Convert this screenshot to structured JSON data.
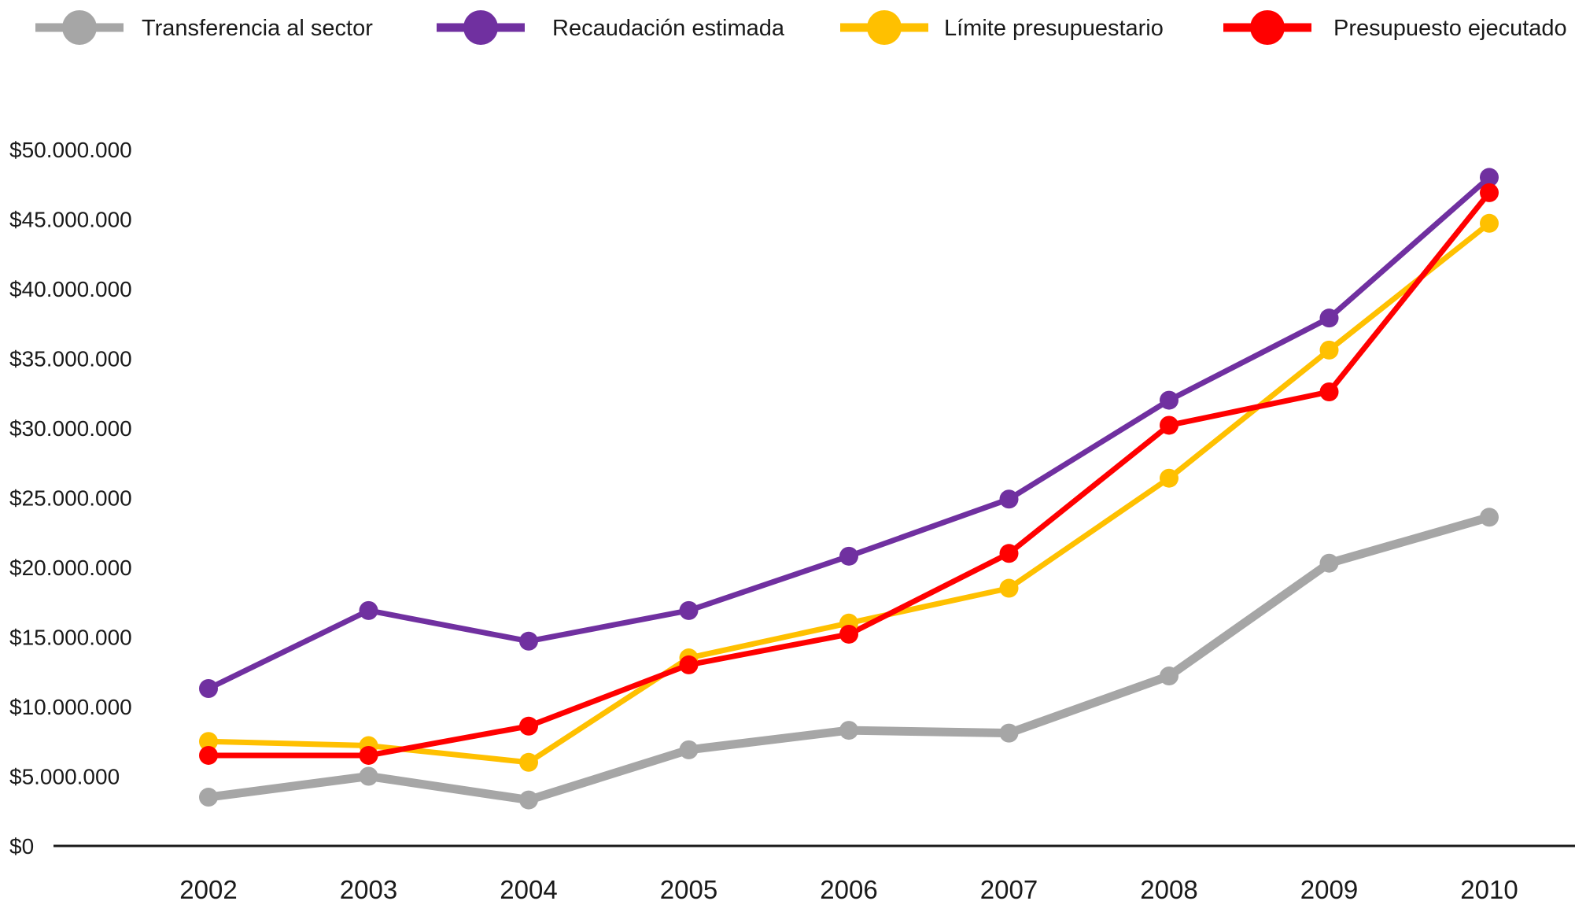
{
  "chart_data": {
    "type": "line",
    "title": "",
    "xlabel": "",
    "ylabel": "",
    "categories": [
      "2002",
      "2003",
      "2004",
      "2005",
      "2006",
      "2007",
      "2008",
      "2009",
      "2010"
    ],
    "ylim": [
      0,
      50000000
    ],
    "y_ticks": [
      {
        "value": 0,
        "label": "$0"
      },
      {
        "value": 5000000,
        "label": "$5.000.000"
      },
      {
        "value": 10000000,
        "label": "$10.000.000"
      },
      {
        "value": 15000000,
        "label": "$15.000.000"
      },
      {
        "value": 20000000,
        "label": "$20.000.000"
      },
      {
        "value": 25000000,
        "label": "$25.000.000"
      },
      {
        "value": 30000000,
        "label": "$30.000.000"
      },
      {
        "value": 35000000,
        "label": "$35.000.000"
      },
      {
        "value": 40000000,
        "label": "$40.000.000"
      },
      {
        "value": 45000000,
        "label": "$45.000.000"
      },
      {
        "value": 50000000,
        "label": "$50.000.000"
      }
    ],
    "grid": false,
    "legend_position": "top",
    "series": [
      {
        "name": "Transferencia al sector",
        "color": "#a6a6a6",
        "values": [
          3500000,
          5000000,
          3300000,
          6900000,
          8300000,
          8100000,
          12200000,
          20300000,
          23600000
        ]
      },
      {
        "name": "Recaudación estimada",
        "color": "#7030a0",
        "values": [
          11300000,
          16900000,
          14700000,
          16900000,
          20800000,
          24900000,
          32000000,
          37900000,
          48000000
        ]
      },
      {
        "name": "Límite presupuestario",
        "color": "#ffc000",
        "values": [
          7500000,
          7200000,
          6000000,
          13500000,
          16000000,
          18500000,
          26400000,
          35600000,
          44700000
        ]
      },
      {
        "name": "Presupuesto ejecutado",
        "color": "#ff0000",
        "values": [
          6500000,
          6500000,
          8600000,
          13000000,
          15200000,
          21000000,
          30200000,
          32600000,
          46900000
        ]
      }
    ]
  }
}
